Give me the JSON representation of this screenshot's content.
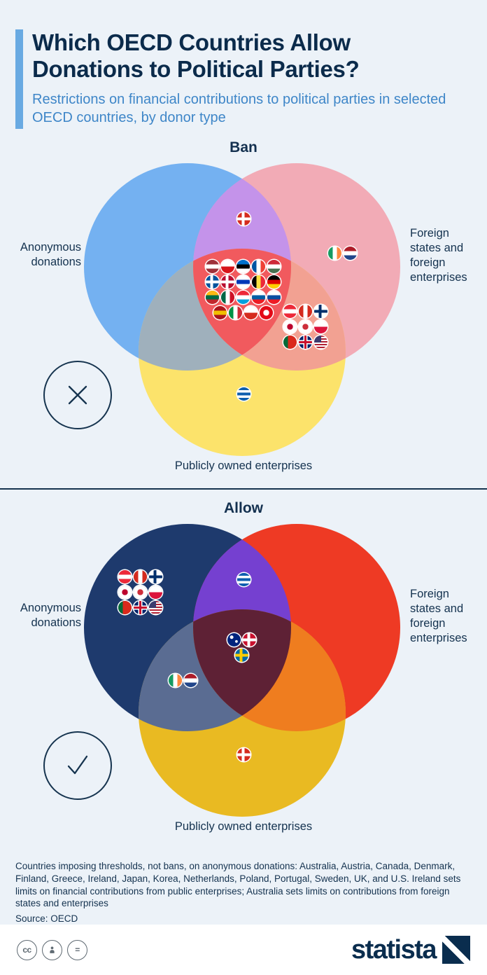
{
  "page": {
    "background": "#ecf2f8",
    "accent": "#69aae2",
    "navy": "#0b2b4b",
    "subtitle_blue": "#3e86c8"
  },
  "header": {
    "title": "Which OECD Countries Allow Donations to Political Parties?",
    "subtitle": "Restrictions on financial contributions to political parties in selected OECD countries, by donor type"
  },
  "flags": {
    "AT": {
      "name": "Austria",
      "t": "h",
      "colors": [
        "#ed2939",
        "#ffffff",
        "#ed2939"
      ]
    },
    "AU": {
      "name": "Australia",
      "t": "au",
      "colors": [
        "#00247d",
        "#ffffff"
      ]
    },
    "BE": {
      "name": "Belgium",
      "t": "v",
      "colors": [
        "#000000",
        "#fae042",
        "#ed2939"
      ]
    },
    "CA": {
      "name": "Canada",
      "t": "v",
      "colors": [
        "#d52b1e",
        "#ffffff",
        "#d52b1e"
      ]
    },
    "CH": {
      "name": "Switzerland",
      "t": "cross",
      "colors": [
        "#d52b1e",
        "#ffffff"
      ]
    },
    "CL": {
      "name": "Chile",
      "t": "h",
      "colors": [
        "#ffffff",
        "#d52b1e"
      ]
    },
    "CZ": {
      "name": "Czech Republic",
      "t": "h",
      "colors": [
        "#ffffff",
        "#d7141a"
      ]
    },
    "DE": {
      "name": "Germany",
      "t": "h",
      "colors": [
        "#000000",
        "#dd0000",
        "#ffce00"
      ]
    },
    "DK": {
      "name": "Denmark",
      "t": "cross",
      "colors": [
        "#c8102e",
        "#ffffff"
      ]
    },
    "EE": {
      "name": "Estonia",
      "t": "h",
      "colors": [
        "#0072ce",
        "#000000",
        "#ffffff"
      ]
    },
    "ES": {
      "name": "Spain",
      "t": "h",
      "colors": [
        "#aa151b",
        "#f1bf00",
        "#aa151b"
      ]
    },
    "FI": {
      "name": "Finland",
      "t": "cross",
      "colors": [
        "#ffffff",
        "#002f6c"
      ]
    },
    "FR": {
      "name": "France",
      "t": "v",
      "colors": [
        "#0055a4",
        "#ffffff",
        "#ef4135"
      ]
    },
    "GB": {
      "name": "United Kingdom",
      "t": "uk",
      "colors": [
        "#012169",
        "#ffffff",
        "#c8102e"
      ]
    },
    "GR": {
      "name": "Greece",
      "t": "h",
      "colors": [
        "#0d5eaf",
        "#ffffff",
        "#0d5eaf",
        "#ffffff",
        "#0d5eaf"
      ]
    },
    "HU": {
      "name": "Hungary",
      "t": "h",
      "colors": [
        "#ce2939",
        "#ffffff",
        "#477050"
      ]
    },
    "IE": {
      "name": "Ireland",
      "t": "v",
      "colors": [
        "#169b62",
        "#ffffff",
        "#ff883e"
      ]
    },
    "IL": {
      "name": "Israel",
      "t": "h",
      "colors": [
        "#ffffff",
        "#0038b8",
        "#ffffff"
      ]
    },
    "IS": {
      "name": "Iceland",
      "t": "cross",
      "colors": [
        "#02529c",
        "#ffffff"
      ]
    },
    "IT": {
      "name": "Italy",
      "t": "v",
      "colors": [
        "#009246",
        "#ffffff",
        "#ce2b37"
      ]
    },
    "JP": {
      "name": "Japan",
      "t": "dot",
      "colors": [
        "#ffffff",
        "#bc002d"
      ]
    },
    "KR": {
      "name": "South Korea",
      "t": "dot",
      "colors": [
        "#ffffff",
        "#cd2e3a"
      ]
    },
    "LT": {
      "name": "Lithuania",
      "t": "h",
      "colors": [
        "#fdb913",
        "#006a44",
        "#c1272d"
      ]
    },
    "LU": {
      "name": "Luxembourg",
      "t": "h",
      "colors": [
        "#ed2939",
        "#ffffff",
        "#00a1de"
      ]
    },
    "LV": {
      "name": "Latvia",
      "t": "h",
      "colors": [
        "#9e3039",
        "#ffffff",
        "#9e3039"
      ]
    },
    "MX": {
      "name": "Mexico",
      "t": "v",
      "colors": [
        "#006847",
        "#ffffff",
        "#ce1126"
      ]
    },
    "NL": {
      "name": "Netherlands",
      "t": "h",
      "colors": [
        "#ae1c28",
        "#ffffff",
        "#21468b"
      ]
    },
    "NO": {
      "name": "Norway",
      "t": "cross",
      "colors": [
        "#ba0c2f",
        "#ffffff"
      ]
    },
    "PL": {
      "name": "Poland",
      "t": "h",
      "colors": [
        "#ffffff",
        "#dc143c"
      ]
    },
    "PT": {
      "name": "Portugal",
      "t": "v",
      "colors": [
        "#046a38",
        "#da291c",
        "#da291c"
      ]
    },
    "SE": {
      "name": "Sweden",
      "t": "cross",
      "colors": [
        "#006aa7",
        "#fecc02"
      ]
    },
    "SI": {
      "name": "Slovenia",
      "t": "h",
      "colors": [
        "#ffffff",
        "#005da4",
        "#ed1c24"
      ]
    },
    "SK": {
      "name": "Slovakia",
      "t": "h",
      "colors": [
        "#ffffff",
        "#0b4ea2",
        "#ee1c25"
      ]
    },
    "TR": {
      "name": "Turkey",
      "t": "dot",
      "colors": [
        "#e30a17",
        "#ffffff"
      ]
    },
    "US": {
      "name": "United States",
      "t": "us",
      "colors": [
        "#b22234",
        "#ffffff",
        "#3c3b6e"
      ]
    }
  },
  "diagrams": [
    {
      "heading": "Ban",
      "symbol": "x-in-circle",
      "labels": {
        "left": "Anonymous donations",
        "right": "Foreign states and foreign enterprises",
        "bottom": "Publicly owned enterprises"
      },
      "colors": {
        "left": "#74b1f1",
        "right": "#f2abb6",
        "bottom": "#fce36b",
        "left_right": "#c493ea",
        "left_bottom": "#9fb0bc",
        "right_bottom": "#f2a192",
        "center": "#f15a5e"
      },
      "regions": {
        "left_right": [
          "CH"
        ],
        "right": [
          "IE",
          "NL"
        ],
        "center": [
          "LV",
          "CZ",
          "EE",
          "FR",
          "HU",
          "IS",
          "NO",
          "IL",
          "BE",
          "DE",
          "LT",
          "MX",
          "LU",
          "SI",
          "SK",
          "ES",
          "IT",
          "CL",
          "TR"
        ],
        "right_bottom": [
          "AT",
          "CA",
          "FI",
          "JP",
          "KR",
          "PL",
          "PT",
          "GB",
          "US"
        ],
        "bottom": [
          "GR"
        ]
      }
    },
    {
      "heading": "Allow",
      "symbol": "check-in-circle",
      "labels": {
        "left": "Anonymous donations",
        "right": "Foreign states and foreign enterprises",
        "bottom": "Publicly owned enterprises"
      },
      "colors": {
        "left": "#1e3a6d",
        "right": "#ee3a24",
        "bottom": "#e9ba22",
        "left_right": "#7540d0",
        "left_bottom": "#5a6c92",
        "right_bottom": "#ef7d1f",
        "center": "#5e2135"
      },
      "regions": {
        "left": [
          "AT",
          "CA",
          "FI",
          "JP",
          "KR",
          "PL",
          "PT",
          "GB",
          "US"
        ],
        "left_right": [
          "GR"
        ],
        "center": [
          "AU",
          "DK",
          "SE"
        ],
        "left_bottom": [
          "IE",
          "NL"
        ],
        "bottom": [
          "CH"
        ]
      }
    }
  ],
  "footnote": "Countries imposing thresholds, not bans, on anonymous donations: Australia, Austria, Canada, Denmark, Finland, Greece, Ireland, Japan, Korea, Netherlands, Poland, Portugal, Sweden, UK, and U.S. Ireland sets limits on financial contributions from public enterprises; Australia sets limits on contributions from foreign states and enterprises",
  "source": "Source: OECD",
  "footer": {
    "brand": "statista",
    "cc_label": "cc",
    "nd_label": "=",
    "icons": [
      "creative-commons-icon",
      "attribution-icon",
      "no-derivatives-icon",
      "statista-logo-mark"
    ]
  },
  "chart_data": {
    "type": "venn",
    "title": "Which OECD Countries Allow Donations to Political Parties?",
    "subtitle": "Restrictions on financial contributions to political parties in selected OECD countries, by donor type",
    "diagrams": [
      {
        "name": "Ban",
        "sets": [
          "Anonymous donations",
          "Foreign states and foreign enterprises",
          "Publicly owned enterprises"
        ],
        "regions": [
          {
            "sets": [
              "Anonymous donations",
              "Foreign states and foreign enterprises"
            ],
            "countries": [
              "Switzerland"
            ]
          },
          {
            "sets": [
              "Foreign states and foreign enterprises"
            ],
            "countries": [
              "Ireland",
              "Netherlands"
            ]
          },
          {
            "sets": [
              "Anonymous donations",
              "Foreign states and foreign enterprises",
              "Publicly owned enterprises"
            ],
            "countries": [
              "Latvia",
              "Czech Republic",
              "Estonia",
              "France",
              "Hungary",
              "Iceland",
              "Norway",
              "Israel",
              "Belgium",
              "Germany",
              "Lithuania",
              "Mexico",
              "Luxembourg",
              "Slovenia",
              "Slovakia",
              "Spain",
              "Italy",
              "Chile",
              "Turkey"
            ]
          },
          {
            "sets": [
              "Foreign states and foreign enterprises",
              "Publicly owned enterprises"
            ],
            "countries": [
              "Austria",
              "Canada",
              "Finland",
              "Japan",
              "South Korea",
              "Poland",
              "Portugal",
              "United Kingdom",
              "United States"
            ]
          },
          {
            "sets": [
              "Publicly owned enterprises"
            ],
            "countries": [
              "Greece"
            ]
          }
        ]
      },
      {
        "name": "Allow",
        "sets": [
          "Anonymous donations",
          "Foreign states and foreign enterprises",
          "Publicly owned enterprises"
        ],
        "regions": [
          {
            "sets": [
              "Anonymous donations"
            ],
            "countries": [
              "Austria",
              "Canada",
              "Finland",
              "Japan",
              "South Korea",
              "Poland",
              "Portugal",
              "United Kingdom",
              "United States"
            ]
          },
          {
            "sets": [
              "Anonymous donations",
              "Foreign states and foreign enterprises"
            ],
            "countries": [
              "Greece"
            ]
          },
          {
            "sets": [
              "Anonymous donations",
              "Foreign states and foreign enterprises",
              "Publicly owned enterprises"
            ],
            "countries": [
              "Australia",
              "Denmark",
              "Sweden"
            ]
          },
          {
            "sets": [
              "Anonymous donations",
              "Publicly owned enterprises"
            ],
            "countries": [
              "Ireland",
              "Netherlands"
            ]
          },
          {
            "sets": [
              "Publicly owned enterprises"
            ],
            "countries": [
              "Switzerland"
            ]
          }
        ]
      }
    ]
  }
}
